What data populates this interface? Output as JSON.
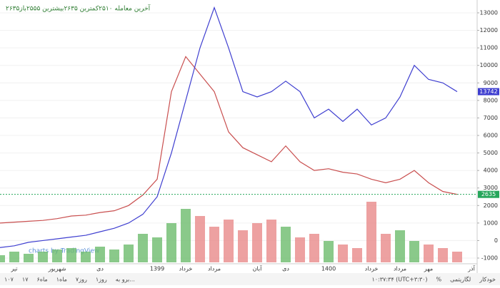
{
  "header": {
    "text": "۲۶۳۵آخرین معامله ۲۵۱۰کمترین ۲۶۳۵بیشترین ۲۵۵۵باز"
  },
  "watermark": "charts by TradingView",
  "toolbar": {
    "left": [
      "۱۰۷",
      "۱۷",
      "۶ماه",
      "۱ماه",
      "۷روز",
      "۱روز",
      "برو به..."
    ],
    "right": [
      "۱۰:۳۷:۳۴ (UTC+۳:۳۰)",
      "%",
      "لگاریتمی",
      "خودکار"
    ]
  },
  "chart_data": {
    "type": "line",
    "categories": [
      null,
      "تیر",
      null,
      null,
      "شهریور",
      null,
      null,
      "دی",
      null,
      null,
      null,
      "1399",
      null,
      "خرداد",
      null,
      "مرداد",
      null,
      null,
      "آبان",
      null,
      "دی",
      null,
      null,
      "1400",
      null,
      null,
      "خرداد",
      null,
      "مرداد",
      null,
      "مهر",
      null,
      null,
      "آذر"
    ],
    "series": [
      {
        "name": "price",
        "color": "#c94f4f",
        "values": [
          1000,
          1050,
          1100,
          1150,
          1250,
          1400,
          1450,
          1600,
          1700,
          2000,
          2600,
          3500,
          8500,
          10500,
          9500,
          8500,
          6200,
          5300,
          4900,
          4500,
          5400,
          4500,
          4000,
          4100,
          3900,
          3800,
          3500,
          3300,
          3500,
          4000,
          3300,
          2800,
          2635,
          null
        ],
        "last_label": "2635",
        "last_color": "#26a65b"
      },
      {
        "name": "compare",
        "color": "#3f3fd0",
        "values": [
          -400,
          -300,
          -100,
          0,
          100,
          200,
          300,
          500,
          700,
          1000,
          1500,
          2500,
          5000,
          8000,
          11000,
          13300,
          11000,
          8500,
          8200,
          8500,
          9100,
          8500,
          7000,
          7500,
          6800,
          7500,
          6600,
          7000,
          8200,
          10000,
          9200,
          9000,
          8500,
          null
        ],
        "last_label": "13742"
      }
    ],
    "volume": {
      "values": [
        10,
        15,
        12,
        15,
        18,
        20,
        15,
        22,
        18,
        25,
        40,
        35,
        55,
        75,
        65,
        50,
        60,
        45,
        55,
        60,
        50,
        35,
        40,
        30,
        25,
        20,
        85,
        40,
        45,
        30,
        25,
        20,
        15,
        null
      ],
      "vlim": [
        0,
        100
      ],
      "up_color": "#6dbb6d",
      "down_color": "#e88a8a"
    },
    "ylim": [
      -1000,
      13000
    ],
    "yticks": [
      -1000,
      0,
      1000,
      2000,
      3000,
      4000,
      5000,
      6000,
      7000,
      8000,
      9000,
      10000,
      11000,
      12000,
      13000
    ],
    "grid": true
  }
}
